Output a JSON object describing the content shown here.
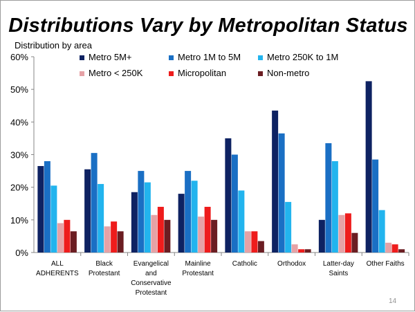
{
  "page_number": "14",
  "chart_data": {
    "type": "bar",
    "title": "Distributions Vary by Metropolitan Status",
    "ylabel": "Distribution by area",
    "xlabel": "",
    "ylim": [
      0,
      60
    ],
    "yticks": [
      "0%",
      "10%",
      "20%",
      "30%",
      "40%",
      "50%",
      "60%"
    ],
    "grid": false,
    "legend_position": "top",
    "categories": [
      [
        "ALL",
        "ADHERENTS"
      ],
      [
        "Black",
        "Protestant"
      ],
      [
        "Evangelical",
        "and",
        "Conservative",
        "Protestant"
      ],
      [
        "Mainline",
        "Protestant"
      ],
      [
        "Catholic"
      ],
      [
        "Orthodox"
      ],
      [
        "Latter-day",
        "Saints"
      ],
      [
        "Other Faiths"
      ]
    ],
    "series": [
      {
        "name": "Metro 5M+",
        "color": "#0e2262",
        "values": [
          26.5,
          25.5,
          18.5,
          18.0,
          35.0,
          43.5,
          10.0,
          52.5
        ]
      },
      {
        "name": "Metro 1M to 5M",
        "color": "#1a6fc4",
        "values": [
          28.0,
          30.5,
          25.0,
          25.0,
          30.0,
          36.5,
          33.5,
          28.5
        ]
      },
      {
        "name": "Metro 250K to 1M",
        "color": "#22b4ee",
        "values": [
          20.5,
          21.0,
          21.5,
          22.0,
          19.0,
          15.5,
          28.0,
          13.0
        ]
      },
      {
        "name": "Metro < 250K",
        "color": "#e6a2a6",
        "values": [
          9.0,
          8.0,
          11.5,
          11.0,
          6.5,
          2.5,
          11.5,
          3.0
        ]
      },
      {
        "name": "Micropolitan",
        "color": "#ee1c1c",
        "values": [
          10.0,
          9.5,
          14.0,
          14.0,
          6.5,
          1.0,
          12.0,
          2.5
        ]
      },
      {
        "name": "Non-metro",
        "color": "#6b1d22",
        "values": [
          6.5,
          6.5,
          10.0,
          10.0,
          3.5,
          1.0,
          6.0,
          1.0
        ]
      }
    ]
  }
}
